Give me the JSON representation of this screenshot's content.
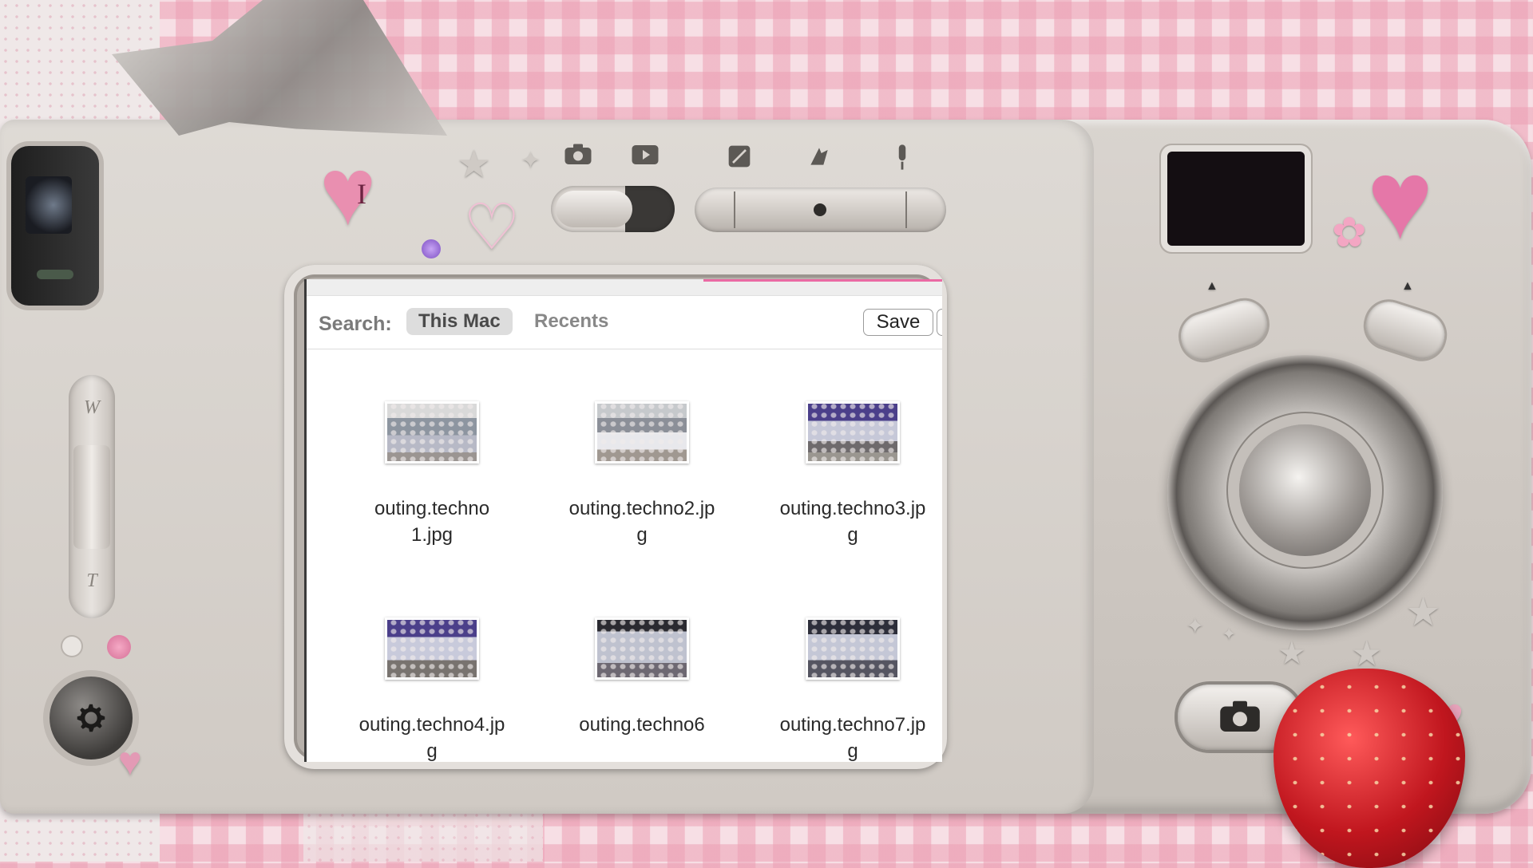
{
  "dialog": {
    "search_label": "Search:",
    "scopes": [
      {
        "label": "This Mac",
        "active": true
      },
      {
        "label": "Recents",
        "active": false
      }
    ],
    "save_label": "Save",
    "files": [
      {
        "name": "outing.techno1.jpg",
        "lines": [
          "outing.techno",
          "1.jpg"
        ]
      },
      {
        "name": "outing.techno2.jpg",
        "lines": [
          "outing.techno2.jp",
          "g"
        ]
      },
      {
        "name": "outing.techno3.jpg",
        "lines": [
          "outing.techno3.jp",
          "g"
        ]
      },
      {
        "name": "outing.techno4.jpg",
        "lines": [
          "outing.techno4.jp",
          "g"
        ]
      },
      {
        "name": "outing.techno6",
        "lines": [
          "outing.techno6",
          ""
        ]
      },
      {
        "name": "outing.techno7.jpg",
        "lines": [
          "outing.techno7.jp",
          "g"
        ]
      }
    ]
  },
  "camera": {
    "zoom_wide_label": "W",
    "zoom_tele_label": "T",
    "heart_label": "I",
    "accent_pink": "#ea6aa4",
    "strawberry_red": "#c0161e",
    "icons": [
      "camera-mode-icon",
      "playback-icon",
      "edit-icon",
      "scene-icon",
      "microphone-icon",
      "gear-icon",
      "shutter-camera-icon"
    ]
  }
}
